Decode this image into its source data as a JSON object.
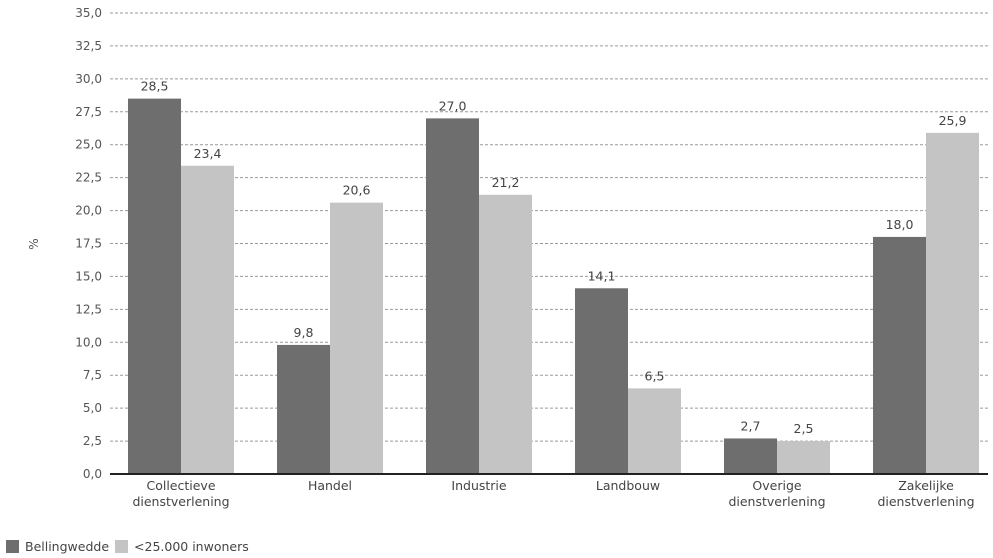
{
  "chart_data": {
    "type": "bar",
    "categories": [
      [
        "Collectieve",
        "dienstverlening"
      ],
      [
        "Handel"
      ],
      [
        "Industrie"
      ],
      [
        "Landbouw"
      ],
      [
        "Overige",
        "dienstverlening"
      ],
      [
        "Zakelijke",
        "dienstverlening"
      ]
    ],
    "series": [
      {
        "name": "Bellingwedde",
        "color": "#6e6e6e",
        "values": [
          28.5,
          9.8,
          27.0,
          14.1,
          2.7,
          18.0
        ],
        "labels": [
          "28,5",
          "9,8",
          "27,0",
          "14,1",
          "2,7",
          "18,0"
        ]
      },
      {
        "name": "<25.000 inwoners",
        "color": "#c4c4c4",
        "values": [
          23.4,
          20.6,
          21.2,
          6.5,
          2.5,
          25.9
        ],
        "labels": [
          "23,4",
          "20,6",
          "21,2",
          "6,5",
          "2,5",
          "25,9"
        ]
      }
    ],
    "ylabel": "%",
    "ylim": [
      0,
      35
    ],
    "yticks": [
      0,
      2.5,
      5,
      7.5,
      10,
      12.5,
      15,
      17.5,
      20,
      22.5,
      25,
      27.5,
      30,
      32.5,
      35
    ],
    "ytick_labels": [
      "0,0",
      "2,5",
      "5,0",
      "7,5",
      "10,0",
      "12,5",
      "15,0",
      "17,5",
      "20,0",
      "22,5",
      "25,0",
      "27,5",
      "30,0",
      "32,5",
      "35,0"
    ],
    "grid": "dashed horizontal",
    "legend_position": "bottom-left"
  }
}
